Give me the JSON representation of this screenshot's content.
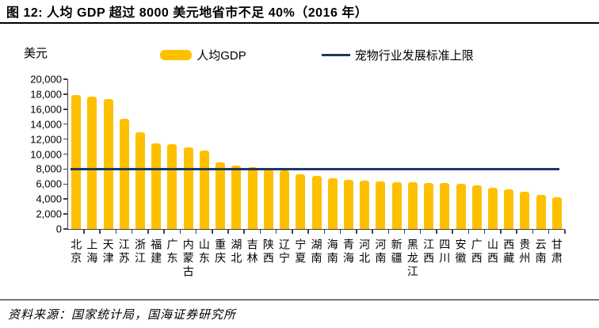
{
  "title": "图 12:  人均 GDP 超过 8000 美元地省市不足 40%（2016 年）",
  "y_unit": "美元",
  "legend": {
    "bar_label": "人均GDP",
    "line_label": "宠物行业发展标准上限"
  },
  "source": "资料来源：国家统计局，国海证券研究所",
  "colors": {
    "bar": "#FFC000",
    "threshold_line": "#1F3864",
    "axis": "#404040"
  },
  "chart_data": {
    "type": "bar",
    "title": "人均 GDP 超过 8000 美元地省市不足 40%（2016 年）",
    "xlabel": "",
    "ylabel": "美元",
    "ylim": [
      0,
      20000
    ],
    "ytick_step": 2000,
    "ytick_labels": [
      "0",
      "2,000",
      "4,000",
      "6,000",
      "8,000",
      "10,000",
      "12,000",
      "14,000",
      "16,000",
      "18,000",
      "20,000"
    ],
    "grid": false,
    "legend_position": "top",
    "categories": [
      "北京",
      "上海",
      "天津",
      "江苏",
      "浙江",
      "福建",
      "广东",
      "内蒙古",
      "山东",
      "重庆",
      "湖北",
      "吉林",
      "陕西",
      "辽宁",
      "宁夏",
      "湖南",
      "海南",
      "青海",
      "河北",
      "河南",
      "新疆",
      "黑龙江",
      "江西",
      "四川",
      "安徽",
      "广西",
      "山西",
      "西藏",
      "贵州",
      "云南",
      "甘肃"
    ],
    "series": [
      {
        "name": "人均GDP",
        "type": "bar",
        "color": "#FFC000",
        "values": [
          17900,
          17700,
          17400,
          14700,
          12900,
          11400,
          11300,
          10900,
          10500,
          8900,
          8500,
          8300,
          7900,
          7800,
          7300,
          7100,
          6800,
          6600,
          6500,
          6400,
          6250,
          6200,
          6150,
          6100,
          6000,
          5850,
          5500,
          5300,
          5000,
          4600,
          4250
        ]
      },
      {
        "name": "宠物行业发展标准上限",
        "type": "line",
        "color": "#1F3864",
        "value": 8000
      }
    ]
  }
}
